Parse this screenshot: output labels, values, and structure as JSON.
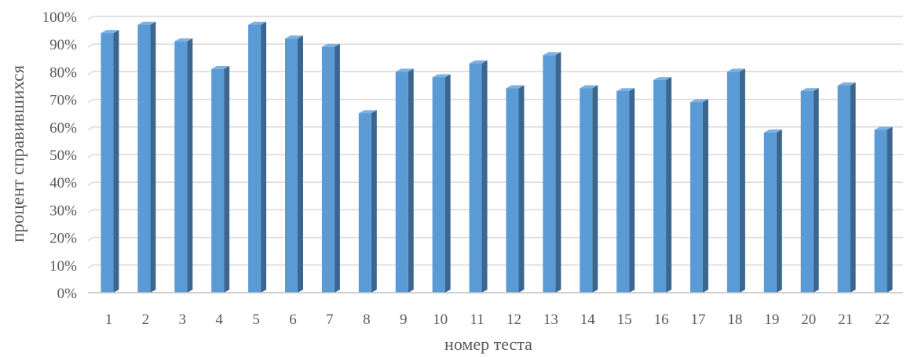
{
  "chart_data": {
    "type": "bar",
    "title": "",
    "xlabel": "номер теста",
    "ylabel": "процент справившихся",
    "categories": [
      "1",
      "2",
      "3",
      "4",
      "5",
      "6",
      "7",
      "8",
      "9",
      "10",
      "11",
      "12",
      "13",
      "14",
      "15",
      "16",
      "17",
      "18",
      "19",
      "20",
      "21",
      "22"
    ],
    "values": [
      94,
      97,
      91,
      81,
      97,
      92,
      89,
      65,
      80,
      78,
      83,
      74,
      86,
      74,
      73,
      77,
      69,
      80,
      58,
      73,
      75,
      59
    ],
    "ylim": [
      0,
      100
    ],
    "yticks": [
      "0%",
      "10%",
      "20%",
      "30%",
      "40%",
      "50%",
      "60%",
      "70%",
      "80%",
      "90%",
      "100%"
    ],
    "grid": true,
    "colors": {
      "front": "#5B9BD5",
      "side": "#3A6690",
      "top": "#7FB1E0",
      "grid": "#D9D9D9",
      "axis": "#BFBFBF"
    }
  }
}
